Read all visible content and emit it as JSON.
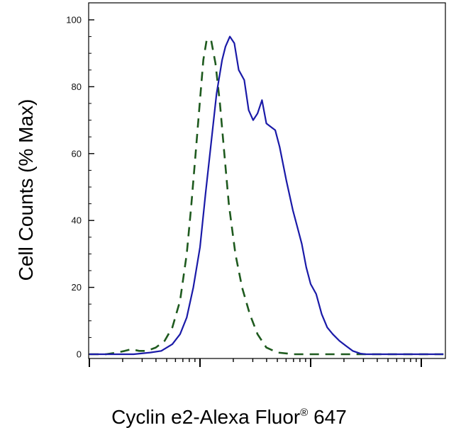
{
  "chart_data": {
    "type": "line",
    "title": "",
    "xlabel": "Cyclin e2-Alexa Fluor",
    "xlabel_superscript": "®",
    "xlabel_suffix": " 647",
    "ylabel": "Cell Counts (% Max)",
    "x_scale": "log",
    "x_range_decades": [
      0,
      3.2
    ],
    "ylim": [
      0,
      100
    ],
    "yticks": [
      0,
      20,
      40,
      60,
      80,
      100
    ],
    "ytick_labels": [
      "0",
      "20",
      "40",
      "60",
      "80",
      "100"
    ],
    "xtick_labels": [],
    "grid": false,
    "legend": "none",
    "series": [
      {
        "style": "dashed",
        "color": "#1e5a1e",
        "x_decades": [
          0.0,
          0.15,
          0.25,
          0.32,
          0.38,
          0.45,
          0.52,
          0.6,
          0.68,
          0.75,
          0.82,
          0.88,
          0.92,
          0.96,
          1.0,
          1.03,
          1.06,
          1.1,
          1.14,
          1.18,
          1.22,
          1.26,
          1.32,
          1.38,
          1.45,
          1.52,
          1.6,
          1.7,
          1.85,
          2.0,
          2.3,
          2.6,
          2.9,
          3.2
        ],
        "y": [
          0,
          0,
          0.5,
          1,
          1.5,
          1,
          1,
          2,
          4,
          8,
          16,
          30,
          44,
          60,
          76,
          88,
          94,
          94,
          87,
          75,
          60,
          45,
          30,
          20,
          12,
          6,
          2,
          0.5,
          0,
          0,
          0,
          0,
          0,
          0
        ]
      },
      {
        "style": "solid",
        "color": "#1a1aa8",
        "x_decades": [
          0.0,
          0.2,
          0.4,
          0.55,
          0.65,
          0.75,
          0.82,
          0.88,
          0.94,
          1.0,
          1.05,
          1.1,
          1.15,
          1.2,
          1.23,
          1.27,
          1.31,
          1.35,
          1.4,
          1.44,
          1.48,
          1.52,
          1.56,
          1.6,
          1.64,
          1.68,
          1.72,
          1.78,
          1.84,
          1.88,
          1.92,
          1.96,
          2.0,
          2.05,
          2.1,
          2.15,
          2.2,
          2.26,
          2.32,
          2.38,
          2.45,
          2.5,
          2.55,
          2.6,
          2.65,
          2.7,
          2.8,
          2.95,
          3.2
        ],
        "y": [
          0,
          0,
          0,
          0.5,
          1,
          3,
          6,
          11,
          20,
          32,
          48,
          63,
          78,
          88,
          92,
          95,
          93,
          85,
          82,
          73,
          70,
          72,
          76,
          69,
          68,
          67,
          62,
          52,
          43,
          38,
          33,
          26,
          21,
          18,
          12,
          8,
          6,
          4,
          2.5,
          1,
          0.2,
          0,
          0,
          0,
          0,
          0,
          0,
          0,
          0
        ]
      }
    ]
  }
}
